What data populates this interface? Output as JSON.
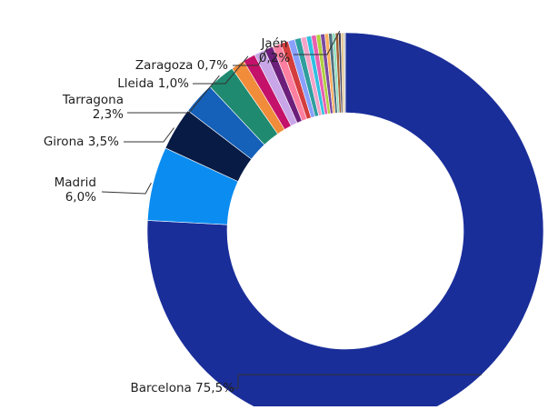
{
  "chart_data": {
    "type": "pie",
    "donut": true,
    "title": "",
    "labels": [
      {
        "text": "Barcelona 75,5%"
      },
      {
        "text": "Madrid\n6,0%"
      },
      {
        "text": "Girona 3,5%"
      },
      {
        "text": "Tarragona\n2,3%"
      },
      {
        "text": "Lleida 1,0%"
      },
      {
        "text": "Zaragoza 0,7%"
      },
      {
        "text": "Jaén\n0,2%"
      }
    ],
    "slices": [
      {
        "name": "Barcelona",
        "value": 75.5,
        "color": "#1a2e9a",
        "label_index": 0
      },
      {
        "name": "Madrid",
        "value": 6.0,
        "color": "#0b8cf0",
        "label_index": 1
      },
      {
        "name": "Girona",
        "value": 3.5,
        "color": "#081b44",
        "label_index": 2
      },
      {
        "name": "",
        "value": 2.6,
        "color": "#1560b8"
      },
      {
        "name": "Tarragona",
        "value": 2.3,
        "color": "#1f8a70",
        "label_index": 3
      },
      {
        "name": "",
        "value": 1.1,
        "color": "#f08c3a"
      },
      {
        "name": "Lleida",
        "value": 1.0,
        "color": "#c4126a",
        "label_index": 4
      },
      {
        "name": "",
        "value": 0.9,
        "color": "#c8a6e8"
      },
      {
        "name": "Zaragoza",
        "value": 0.7,
        "color": "#6b1f7a",
        "label_index": 5
      },
      {
        "name": "",
        "value": 0.7,
        "color": "#ff7fa0"
      },
      {
        "name": "",
        "value": 0.6,
        "color": "#d43d3d"
      },
      {
        "name": "",
        "value": 0.55,
        "color": "#8aa0ff"
      },
      {
        "name": "",
        "value": 0.5,
        "color": "#2f9e9e"
      },
      {
        "name": "",
        "value": 0.45,
        "color": "#f4a4c8"
      },
      {
        "name": "",
        "value": 0.4,
        "color": "#30c0e0"
      },
      {
        "name": "",
        "value": 0.4,
        "color": "#e85fb0"
      },
      {
        "name": "",
        "value": 0.35,
        "color": "#b0d040"
      },
      {
        "name": "",
        "value": 0.35,
        "color": "#7a4aa0"
      },
      {
        "name": "",
        "value": 0.3,
        "color": "#ffb060"
      },
      {
        "name": "",
        "value": 0.3,
        "color": "#507080"
      },
      {
        "name": "",
        "value": 0.25,
        "color": "#90e0c0"
      },
      {
        "name": "",
        "value": 0.25,
        "color": "#a06030"
      },
      {
        "name": "Jaén",
        "value": 0.2,
        "color": "#404060",
        "label_index": 6
      },
      {
        "name": "",
        "value": 0.2,
        "color": "#e0c080"
      },
      {
        "name": "",
        "value": 0.15,
        "color": "#c0c0c0"
      }
    ]
  }
}
